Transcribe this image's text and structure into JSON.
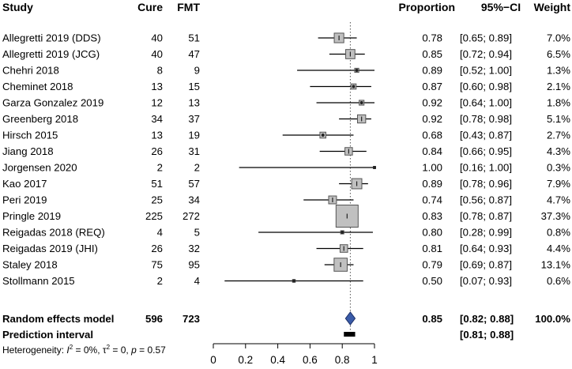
{
  "chart_data": {
    "type": "forest",
    "headers": {
      "study": "Study",
      "cure": "Cure",
      "fmt": "FMT",
      "proportion": "Proportion",
      "ci": "95%−CI",
      "weight": "Weight"
    },
    "studies": [
      {
        "study": "Allegretti 2019 (DDS)",
        "cure": "40",
        "fmt": "51",
        "prop": 0.78,
        "lo": 0.65,
        "hi": 0.89,
        "prop_text": "0.78",
        "ci_text": "[0.65; 0.89]",
        "weight": 7.0,
        "weight_text": "7.0%"
      },
      {
        "study": "Allegretti 2019 (JCG)",
        "cure": "40",
        "fmt": "47",
        "prop": 0.85,
        "lo": 0.72,
        "hi": 0.94,
        "prop_text": "0.85",
        "ci_text": "[0.72; 0.94]",
        "weight": 6.5,
        "weight_text": "6.5%"
      },
      {
        "study": "Chehri 2018",
        "cure": "8",
        "fmt": "9",
        "prop": 0.89,
        "lo": 0.52,
        "hi": 1.0,
        "prop_text": "0.89",
        "ci_text": "[0.52; 1.00]",
        "weight": 1.3,
        "weight_text": "1.3%"
      },
      {
        "study": "Cheminet 2018",
        "cure": "13",
        "fmt": "15",
        "prop": 0.87,
        "lo": 0.6,
        "hi": 0.98,
        "prop_text": "0.87",
        "ci_text": "[0.60; 0.98]",
        "weight": 2.1,
        "weight_text": "2.1%"
      },
      {
        "study": "Garza Gonzalez 2019",
        "cure": "12",
        "fmt": "13",
        "prop": 0.92,
        "lo": 0.64,
        "hi": 1.0,
        "prop_text": "0.92",
        "ci_text": "[0.64; 1.00]",
        "weight": 1.8,
        "weight_text": "1.8%"
      },
      {
        "study": "Greenberg 2018",
        "cure": "34",
        "fmt": "37",
        "prop": 0.92,
        "lo": 0.78,
        "hi": 0.98,
        "prop_text": "0.92",
        "ci_text": "[0.78; 0.98]",
        "weight": 5.1,
        "weight_text": "5.1%"
      },
      {
        "study": "Hirsch 2015",
        "cure": "13",
        "fmt": "19",
        "prop": 0.68,
        "lo": 0.43,
        "hi": 0.87,
        "prop_text": "0.68",
        "ci_text": "[0.43; 0.87]",
        "weight": 2.7,
        "weight_text": "2.7%"
      },
      {
        "study": "Jiang 2018",
        "cure": "26",
        "fmt": "31",
        "prop": 0.84,
        "lo": 0.66,
        "hi": 0.95,
        "prop_text": "0.84",
        "ci_text": "[0.66; 0.95]",
        "weight": 4.3,
        "weight_text": "4.3%"
      },
      {
        "study": "Jorgensen 2020",
        "cure": "2",
        "fmt": "2",
        "prop": 1.0,
        "lo": 0.16,
        "hi": 1.0,
        "prop_text": "1.00",
        "ci_text": "[0.16; 1.00]",
        "weight": 0.3,
        "weight_text": "0.3%"
      },
      {
        "study": "Kao 2017",
        "cure": "51",
        "fmt": "57",
        "prop": 0.89,
        "lo": 0.78,
        "hi": 0.96,
        "prop_text": "0.89",
        "ci_text": "[0.78; 0.96]",
        "weight": 7.9,
        "weight_text": "7.9%"
      },
      {
        "study": "Peri 2019",
        "cure": "25",
        "fmt": "34",
        "prop": 0.74,
        "lo": 0.56,
        "hi": 0.87,
        "prop_text": "0.74",
        "ci_text": "[0.56; 0.87]",
        "weight": 4.7,
        "weight_text": "4.7%"
      },
      {
        "study": "Pringle 2019",
        "cure": "225",
        "fmt": "272",
        "prop": 0.83,
        "lo": 0.78,
        "hi": 0.87,
        "prop_text": "0.83",
        "ci_text": "[0.78; 0.87]",
        "weight": 37.3,
        "weight_text": "37.3%"
      },
      {
        "study": "Reigadas 2018 (REQ)",
        "cure": "4",
        "fmt": "5",
        "prop": 0.8,
        "lo": 0.28,
        "hi": 0.99,
        "prop_text": "0.80",
        "ci_text": "[0.28; 0.99]",
        "weight": 0.8,
        "weight_text": "0.8%"
      },
      {
        "study": "Reigadas 2019 (JHI)",
        "cure": "26",
        "fmt": "32",
        "prop": 0.81,
        "lo": 0.64,
        "hi": 0.93,
        "prop_text": "0.81",
        "ci_text": "[0.64; 0.93]",
        "weight": 4.4,
        "weight_text": "4.4%"
      },
      {
        "study": "Staley 2018",
        "cure": "75",
        "fmt": "95",
        "prop": 0.79,
        "lo": 0.69,
        "hi": 0.87,
        "prop_text": "0.79",
        "ci_text": "[0.69; 0.87]",
        "weight": 13.1,
        "weight_text": "13.1%"
      },
      {
        "study": "Stollmann 2015",
        "cure": "2",
        "fmt": "4",
        "prop": 0.5,
        "lo": 0.07,
        "hi": 0.93,
        "prop_text": "0.50",
        "ci_text": "[0.07; 0.93]",
        "weight": 0.6,
        "weight_text": "0.6%"
      }
    ],
    "summary": {
      "label": "Random effects model",
      "cure": "596",
      "fmt": "723",
      "prop": 0.85,
      "lo": 0.82,
      "hi": 0.88,
      "prop_text": "0.85",
      "ci_text": "[0.82; 0.88]",
      "weight_text": "100.0%"
    },
    "prediction": {
      "label": "Prediction interval",
      "lo": 0.81,
      "hi": 0.88,
      "ci_text": "[0.81; 0.88]"
    },
    "heterogeneity": {
      "prefix": "Heterogeneity: ",
      "i2_symbol": "I",
      "i2_sup": "2",
      "i2_value": " = 0%, ",
      "tau_symbol": "τ",
      "tau_sup": "2",
      "tau_value": " = 0, ",
      "p_symbol": "p",
      "p_value": " = 0.57"
    },
    "x_axis": {
      "range": [
        0,
        1
      ],
      "ticks": [
        0,
        0.2,
        0.4,
        0.6,
        0.8,
        1
      ],
      "tick_labels": [
        "0",
        "0.2",
        "0.4",
        "0.6",
        "0.8",
        "1"
      ]
    },
    "reference_line": 0.85,
    "colors": {
      "box_fill": "#c0c0c0",
      "box_stroke": "#555555",
      "diamond_fill": "#3a5ba8",
      "diamond_stroke": "#1c2f66",
      "prediction_fill": "#000000",
      "line": "#000000"
    }
  }
}
